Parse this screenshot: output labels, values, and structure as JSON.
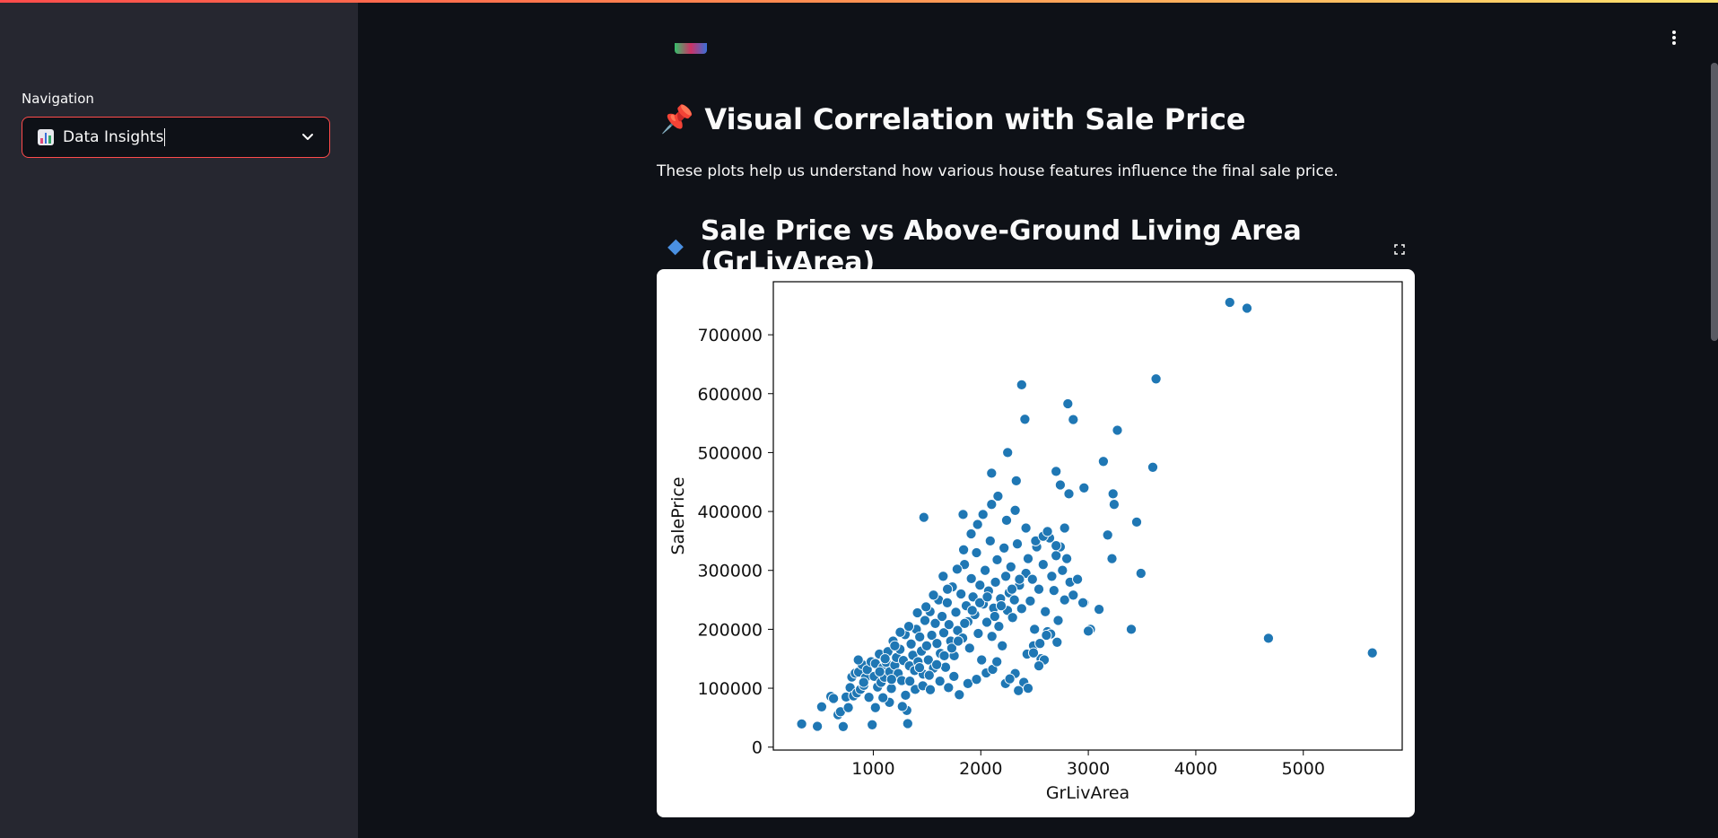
{
  "sidebar": {
    "nav_label": "Navigation",
    "nav_select": {
      "value": "Data Insights",
      "icon": "bar-chart-icon"
    }
  },
  "main": {
    "section_title": "Visual Correlation with Sale Price",
    "section_icon": "pushpin-icon",
    "description": "These plots help us understand how various house features influence the final sale price.",
    "chart_heading": "Sale Price vs Above-Ground Living Area (GrLivArea)",
    "chart_heading_icon": "blue-diamond-icon"
  },
  "colors": {
    "accent": "#ff4b4b",
    "background": "#0e1117",
    "sidebar_bg": "#262730",
    "point": "#1f77b4"
  },
  "chart_data": {
    "type": "scatter",
    "title": "",
    "xlabel": "GrLivArea",
    "ylabel": "SalePrice",
    "xlim": [
      70,
      5920
    ],
    "ylim": [
      -5000,
      790000
    ],
    "xticks": [
      1000,
      2000,
      3000,
      4000,
      5000
    ],
    "xtick_labels": [
      "1000",
      "2000",
      "3000",
      "4000",
      "5000"
    ],
    "yticks": [
      0,
      100000,
      200000,
      300000,
      400000,
      500000,
      600000,
      700000
    ],
    "ytick_labels": [
      "0",
      "100000",
      "200000",
      "300000",
      "400000",
      "500000",
      "600000",
      "700000"
    ],
    "grid": false,
    "points": [
      [
        334,
        39300
      ],
      [
        480,
        35311
      ],
      [
        520,
        68400
      ],
      [
        605,
        86000
      ],
      [
        630,
        82500
      ],
      [
        672,
        55000
      ],
      [
        694,
        60000
      ],
      [
        720,
        34900
      ],
      [
        747,
        85000
      ],
      [
        768,
        67000
      ],
      [
        784,
        101000
      ],
      [
        800,
        119000
      ],
      [
        816,
        87000
      ],
      [
        832,
        125500
      ],
      [
        848,
        92000
      ],
      [
        864,
        127500
      ],
      [
        880,
        98000
      ],
      [
        896,
        140000
      ],
      [
        912,
        105000
      ],
      [
        928,
        118000
      ],
      [
        944,
        131500
      ],
      [
        960,
        84500
      ],
      [
        980,
        145000
      ],
      [
        990,
        37900
      ],
      [
        1008,
        120000
      ],
      [
        1020,
        142000
      ],
      [
        1040,
        102000
      ],
      [
        1056,
        158000
      ],
      [
        1072,
        110000
      ],
      [
        1088,
        135000
      ],
      [
        1104,
        118500
      ],
      [
        1120,
        144000
      ],
      [
        1136,
        162000
      ],
      [
        1152,
        128000
      ],
      [
        1168,
        99500
      ],
      [
        1184,
        180000
      ],
      [
        1200,
        139000
      ],
      [
        1216,
        152000
      ],
      [
        1232,
        125000
      ],
      [
        1248,
        166000
      ],
      [
        1264,
        113000
      ],
      [
        1280,
        147000
      ],
      [
        1296,
        191000
      ],
      [
        1312,
        62383
      ],
      [
        1320,
        40000
      ],
      [
        1336,
        138000
      ],
      [
        1352,
        175000
      ],
      [
        1368,
        156000
      ],
      [
        1384,
        129900
      ],
      [
        1400,
        200000
      ],
      [
        1416,
        145000
      ],
      [
        1432,
        187000
      ],
      [
        1448,
        163000
      ],
      [
        1464,
        124000
      ],
      [
        1480,
        215000
      ],
      [
        1496,
        172000
      ],
      [
        1512,
        148000
      ],
      [
        1528,
        230000
      ],
      [
        1544,
        190000
      ],
      [
        1560,
        134000
      ],
      [
        1576,
        210000
      ],
      [
        1592,
        176000
      ],
      [
        1608,
        250000
      ],
      [
        1624,
        159000
      ],
      [
        1640,
        222000
      ],
      [
        1656,
        194000
      ],
      [
        1672,
        135500
      ],
      [
        1688,
        245000
      ],
      [
        1704,
        208000
      ],
      [
        1720,
        180000
      ],
      [
        1736,
        272000
      ],
      [
        1752,
        155000
      ],
      [
        1768,
        229000
      ],
      [
        1784,
        198000
      ],
      [
        1800,
        89000
      ],
      [
        1816,
        260000
      ],
      [
        1832,
        185000
      ],
      [
        1848,
        310000
      ],
      [
        1864,
        240000
      ],
      [
        1880,
        213000
      ],
      [
        1896,
        168000
      ],
      [
        1912,
        286000
      ],
      [
        1928,
        255000
      ],
      [
        1944,
        225000
      ],
      [
        1960,
        330000
      ],
      [
        1976,
        193000
      ],
      [
        1992,
        275000
      ],
      [
        2008,
        148000
      ],
      [
        2024,
        243000
      ],
      [
        2040,
        300000
      ],
      [
        2056,
        212000
      ],
      [
        2072,
        265000
      ],
      [
        2088,
        350000
      ],
      [
        2104,
        188000
      ],
      [
        2120,
        236000
      ],
      [
        2136,
        280000
      ],
      [
        2152,
        318000
      ],
      [
        2168,
        205000
      ],
      [
        2184,
        252000
      ],
      [
        2200,
        172000
      ],
      [
        2216,
        338000
      ],
      [
        2232,
        290000
      ],
      [
        2248,
        232000
      ],
      [
        2264,
        262000
      ],
      [
        2280,
        306000
      ],
      [
        2296,
        220000
      ],
      [
        2312,
        250000
      ],
      [
        2320,
        125000
      ],
      [
        2340,
        345000
      ],
      [
        2360,
        275000
      ],
      [
        2380,
        235000
      ],
      [
        2400,
        110000
      ],
      [
        2420,
        295000
      ],
      [
        2440,
        320000
      ],
      [
        2460,
        248000
      ],
      [
        2480,
        285000
      ],
      [
        2500,
        200000
      ],
      [
        2520,
        340000
      ],
      [
        2540,
        268000
      ],
      [
        2560,
        150000
      ],
      [
        2580,
        310000
      ],
      [
        2600,
        230000
      ],
      [
        2620,
        196000
      ],
      [
        2640,
        355000
      ],
      [
        2660,
        290000
      ],
      [
        2680,
        265000
      ],
      [
        2700,
        325000
      ],
      [
        2720,
        215000
      ],
      [
        2740,
        340000
      ],
      [
        2760,
        300000
      ],
      [
        2780,
        250000
      ],
      [
        2800,
        320000
      ],
      [
        2830,
        280000
      ],
      [
        2860,
        258000
      ],
      [
        2900,
        285000
      ],
      [
        2960,
        245000
      ],
      [
        3020,
        200000
      ],
      [
        3100,
        234000
      ],
      [
        1270,
        69000
      ],
      [
        1150,
        76000
      ],
      [
        1090,
        84000
      ],
      [
        1020,
        67000
      ],
      [
        1300,
        88000
      ],
      [
        1390,
        98000
      ],
      [
        1460,
        104000
      ],
      [
        1530,
        97500
      ],
      [
        1620,
        112000
      ],
      [
        1700,
        101000
      ],
      [
        1750,
        120000
      ],
      [
        1880,
        108000
      ],
      [
        1960,
        115000
      ],
      [
        2050,
        126000
      ],
      [
        2110,
        132000
      ],
      [
        2150,
        145000
      ],
      [
        2230,
        108000
      ],
      [
        2270,
        116000
      ],
      [
        2350,
        96000
      ],
      [
        2430,
        158000
      ],
      [
        2490,
        172000
      ],
      [
        2590,
        148000
      ],
      [
        2650,
        192000
      ],
      [
        2710,
        178000
      ],
      [
        1200,
        172000
      ],
      [
        1250,
        195000
      ],
      [
        1330,
        205000
      ],
      [
        1410,
        228000
      ],
      [
        1490,
        238000
      ],
      [
        1560,
        258000
      ],
      [
        1650,
        290000
      ],
      [
        1690,
        268000
      ],
      [
        1780,
        302000
      ],
      [
        1840,
        335000
      ],
      [
        1910,
        362000
      ],
      [
        1970,
        378000
      ],
      [
        2020,
        395000
      ],
      [
        2100,
        412000
      ],
      [
        2160,
        426000
      ],
      [
        2240,
        385000
      ],
      [
        2320,
        402000
      ],
      [
        2420,
        372000
      ],
      [
        2510,
        350000
      ],
      [
        2580,
        358000
      ],
      [
        2620,
        366000
      ],
      [
        2700,
        342000
      ],
      [
        2780,
        372000
      ],
      [
        1470,
        390000
      ],
      [
        1835,
        395000
      ],
      [
        2380,
        615000
      ],
      [
        2410,
        556581
      ],
      [
        2250,
        500000
      ],
      [
        2100,
        465000
      ],
      [
        2330,
        452000
      ],
      [
        2700,
        468000
      ],
      [
        2740,
        445000
      ],
      [
        2820,
        430000
      ],
      [
        2960,
        440000
      ],
      [
        2810,
        582933
      ],
      [
        2860,
        556000
      ],
      [
        3270,
        538000
      ],
      [
        3140,
        485000
      ],
      [
        3230,
        430000
      ],
      [
        3240,
        412000
      ],
      [
        3450,
        382000
      ],
      [
        3180,
        360000
      ],
      [
        3220,
        320000
      ],
      [
        3490,
        295000
      ],
      [
        3600,
        475000
      ],
      [
        3630,
        625000
      ],
      [
        4316,
        755000
      ],
      [
        4476,
        745000
      ],
      [
        3400,
        200000
      ],
      [
        3000,
        197000
      ],
      [
        4676,
        184750
      ],
      [
        5642,
        160000
      ],
      [
        2950,
        245000
      ],
      [
        2680,
        266000
      ],
      [
        2610,
        190000
      ],
      [
        2550,
        176000
      ],
      [
        2490,
        160000
      ],
      [
        2540,
        138000
      ],
      [
        2440,
        100000
      ],
      [
        860,
        148000
      ],
      [
        910,
        110000
      ],
      [
        1060,
        128000
      ],
      [
        1110,
        150000
      ],
      [
        1170,
        115000
      ],
      [
        1340,
        112000
      ],
      [
        1430,
        135000
      ],
      [
        1520,
        122000
      ],
      [
        1590,
        140000
      ],
      [
        1660,
        155000
      ],
      [
        1730,
        168000
      ],
      [
        1790,
        180000
      ],
      [
        1850,
        210000
      ],
      [
        1920,
        232000
      ],
      [
        1990,
        245000
      ],
      [
        2060,
        255000
      ],
      [
        2130,
        222000
      ],
      [
        2190,
        240000
      ],
      [
        2290,
        268000
      ],
      [
        2360,
        285000
      ]
    ]
  }
}
